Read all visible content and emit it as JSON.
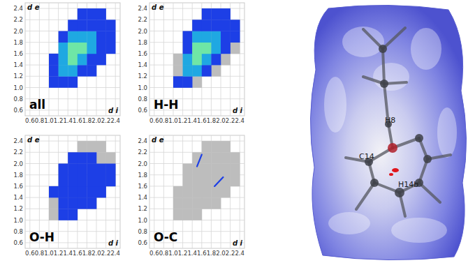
{
  "chart_data": [
    {
      "type": "heatmap",
      "title": "all",
      "x_label": "d i",
      "y_label": "d e",
      "xlim": [
        0.5,
        2.5
      ],
      "ylim": [
        0.5,
        2.5
      ],
      "grid": true,
      "xticks": [
        0.6,
        0.8,
        {
          "value": 1,
          "label": "1.0"
        },
        1.2,
        1.4,
        1.6,
        1.8,
        {
          "value": 2,
          "label": "2.0"
        },
        2.2,
        2.4
      ],
      "yticks": [
        0.6,
        0.8,
        {
          "value": 1,
          "label": "1.0"
        },
        1.2,
        1.4,
        1.6,
        1.8,
        {
          "value": 2,
          "label": "2.0"
        },
        2.2,
        2.4
      ],
      "x_bins": [
        1.0,
        1.2,
        1.4,
        1.6,
        1.8,
        2.0,
        2.2,
        2.4
      ],
      "y_bins": [
        1.0,
        1.2,
        1.4,
        1.6,
        1.8,
        2.0,
        2.2,
        2.4
      ],
      "cells": [
        [
          1,
          1,
          1,
          0,
          0,
          0,
          0
        ],
        [
          1,
          2,
          2,
          1,
          1,
          0,
          0
        ],
        [
          1,
          2,
          3,
          2,
          1,
          1,
          0
        ],
        [
          0,
          2,
          3,
          3,
          2,
          1,
          1
        ],
        [
          0,
          1,
          2,
          2,
          2,
          1,
          1
        ],
        [
          0,
          0,
          1,
          1,
          1,
          1,
          1
        ],
        [
          0,
          0,
          0,
          1,
          1,
          1,
          0
        ]
      ],
      "colors": [
        "#1d3fe6",
        "#1fa8e2",
        "#6fe6a6"
      ]
    },
    {
      "type": "heatmap",
      "title": "H-H",
      "x_label": "d i",
      "y_label": "d e",
      "xlim": [
        0.5,
        2.5
      ],
      "ylim": [
        0.5,
        2.5
      ],
      "grid": true,
      "xticks": [
        0.6,
        0.8,
        {
          "value": 1,
          "label": "1.0"
        },
        1.2,
        1.4,
        1.6,
        1.8,
        {
          "value": 2,
          "label": "2.0"
        },
        2.2,
        2.4
      ],
      "yticks": [
        0.6,
        0.8,
        {
          "value": 1,
          "label": "1.0"
        },
        1.2,
        1.4,
        1.6,
        1.8,
        {
          "value": 2,
          "label": "2.0"
        },
        2.2,
        2.4
      ],
      "x_bins": [
        1.0,
        1.2,
        1.4,
        1.6,
        1.8,
        2.0,
        2.2,
        2.4
      ],
      "y_bins": [
        1.0,
        1.2,
        1.4,
        1.6,
        1.8,
        2.0,
        2.2,
        2.4
      ],
      "cells": [
        [
          1,
          1,
          0,
          0,
          0,
          0,
          0
        ],
        [
          0,
          2,
          2,
          1,
          0,
          0,
          0
        ],
        [
          0,
          2,
          3,
          2,
          1,
          0,
          0
        ],
        [
          0,
          1,
          3,
          3,
          2,
          1,
          0
        ],
        [
          0,
          1,
          2,
          2,
          2,
          1,
          1
        ],
        [
          0,
          0,
          1,
          1,
          1,
          1,
          1
        ],
        [
          0,
          0,
          0,
          1,
          1,
          1,
          0
        ]
      ],
      "colors": [
        "#1d3fe6",
        "#1fa8e2",
        "#6fe6a6"
      ]
    },
    {
      "type": "heatmap",
      "title": "O-H",
      "x_label": "d i",
      "y_label": "d e",
      "xlim": [
        0.5,
        2.5
      ],
      "ylim": [
        0.5,
        2.5
      ],
      "grid": true,
      "xticks": [
        0.6,
        0.8,
        {
          "value": 1,
          "label": "1.0"
        },
        1.2,
        1.4,
        1.6,
        1.8,
        {
          "value": 2,
          "label": "2.0"
        },
        2.2,
        2.4
      ],
      "yticks": [
        0.6,
        0.8,
        {
          "value": 1,
          "label": "1.0"
        },
        1.2,
        1.4,
        1.6,
        1.8,
        {
          "value": 2,
          "label": "2.0"
        },
        2.2,
        2.4
      ],
      "x_bins": [
        1.0,
        1.2,
        1.4,
        1.6,
        1.8,
        2.0,
        2.2,
        2.4
      ],
      "y_bins": [
        1.0,
        1.2,
        1.4,
        1.6,
        1.8,
        2.0,
        2.2,
        2.4
      ],
      "cells": [
        [
          0,
          1,
          1,
          0,
          0,
          0,
          0
        ],
        [
          0,
          1,
          1,
          1,
          1,
          0,
          0
        ],
        [
          1,
          1,
          1,
          1,
          1,
          1,
          0
        ],
        [
          0,
          1,
          1,
          1,
          1,
          1,
          1
        ],
        [
          0,
          1,
          1,
          1,
          1,
          1,
          1
        ],
        [
          0,
          0,
          1,
          1,
          1,
          0,
          0
        ],
        [
          0,
          0,
          0,
          0,
          0,
          0,
          0
        ]
      ],
      "color": "#1d3fe6"
    },
    {
      "type": "line",
      "title": "O-C",
      "x_label": "d i",
      "y_label": "d e",
      "xlim": [
        0.5,
        2.5
      ],
      "ylim": [
        0.5,
        2.5
      ],
      "grid": true,
      "xticks": [
        0.6,
        0.8,
        {
          "value": 1,
          "label": "1.0"
        },
        1.2,
        1.4,
        1.6,
        1.8,
        {
          "value": 2,
          "label": "2.0"
        },
        2.2,
        2.4
      ],
      "yticks": [
        0.6,
        0.8,
        {
          "value": 1,
          "label": "1.0"
        },
        1.2,
        1.4,
        1.6,
        1.8,
        {
          "value": 2,
          "label": "2.0"
        },
        2.2,
        2.4
      ],
      "series": [
        {
          "x": [
            1.5,
            1.6
          ],
          "values": [
            1.95,
            2.16
          ]
        },
        {
          "x": [
            1.87,
            2.05
          ],
          "values": [
            1.6,
            1.76
          ]
        }
      ],
      "color": "#1d3fe6"
    }
  ],
  "surface": {
    "labels": [
      "H8",
      "C14",
      "H14b"
    ]
  }
}
